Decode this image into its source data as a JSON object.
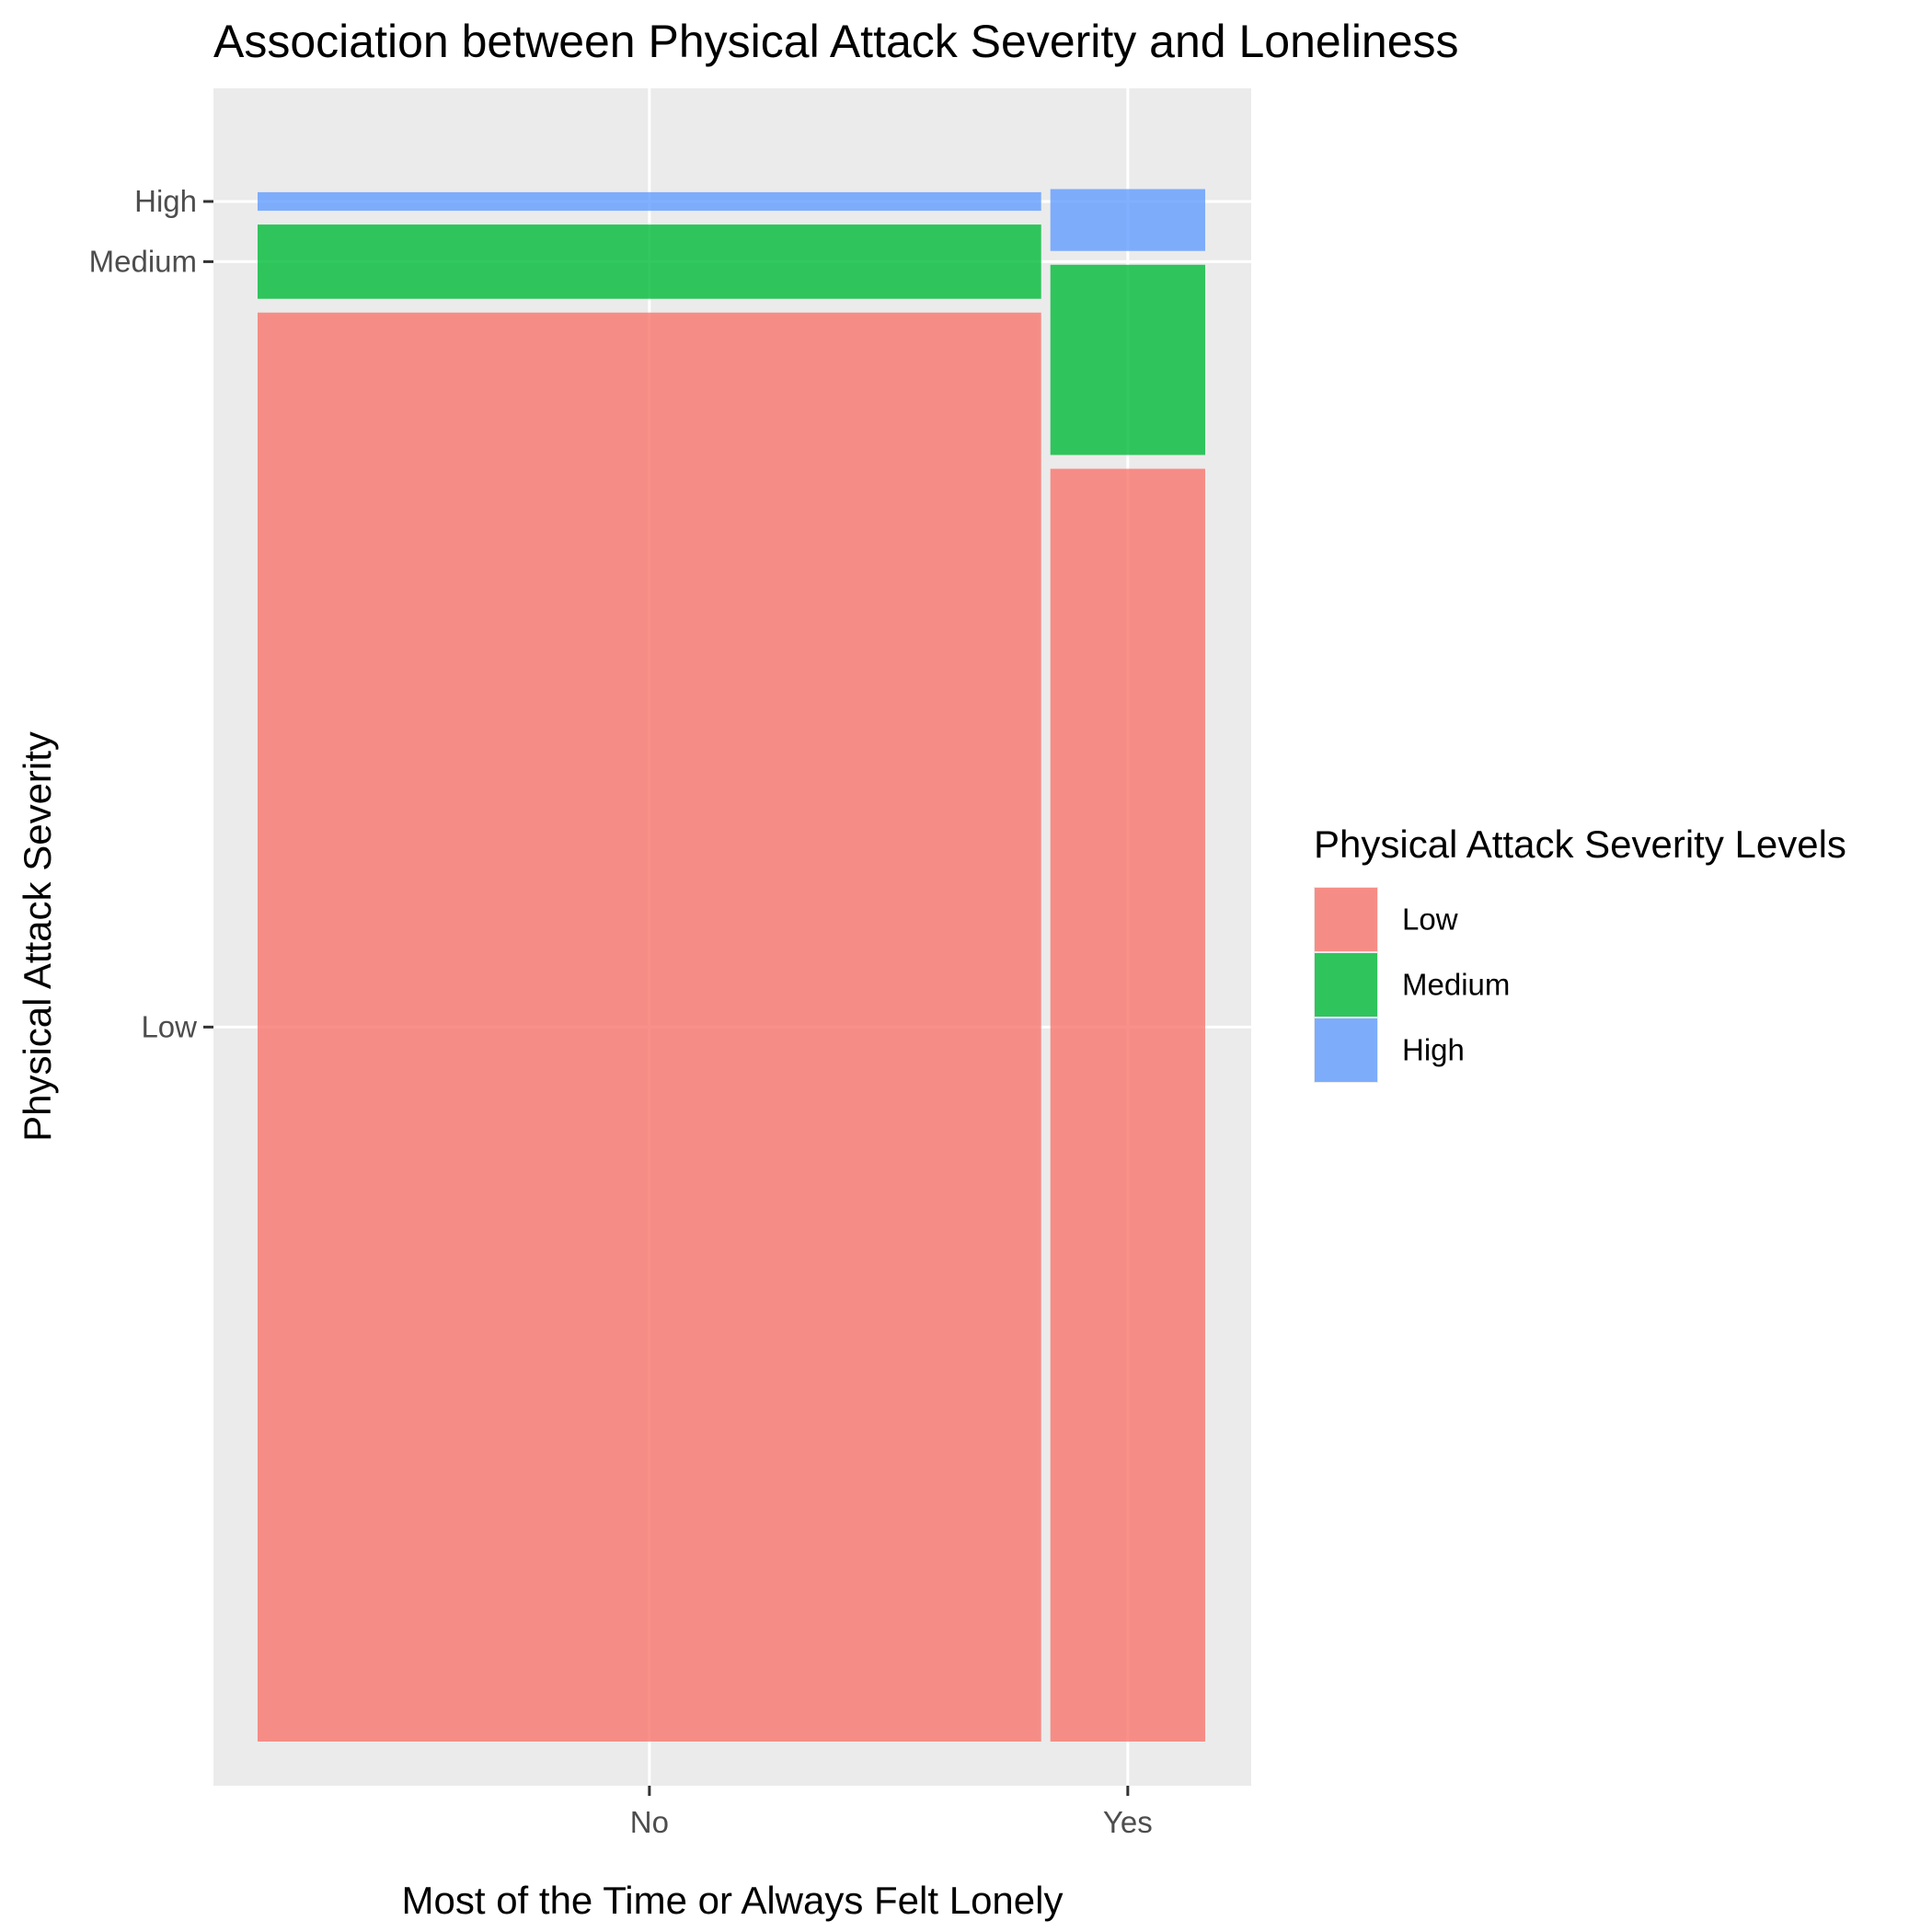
{
  "chart_data": {
    "type": "mosaic",
    "title": "Association between Physical Attack Severity and Loneliness",
    "xlabel": "Most of the Time or Always Felt Lonely",
    "ylabel": "Physical Attack Severity",
    "categories": [
      "No",
      "Yes"
    ],
    "column_share": [
      0.835,
      0.165
    ],
    "series": [
      {
        "name": "Low",
        "values": [
          0.924,
          0.823
        ],
        "color": "#F8766D"
      },
      {
        "name": "Medium",
        "values": [
          0.048,
          0.123
        ],
        "color": "#00BA38"
      },
      {
        "name": "High",
        "values": [
          0.012,
          0.04
        ],
        "color": "#619CFF"
      }
    ],
    "y_ticks": [
      "Low",
      "Medium",
      "High"
    ],
    "ylim": [
      0,
      1
    ],
    "legend": {
      "title": "Physical Attack Severity Levels",
      "placement": "right",
      "items": [
        "Low",
        "Medium",
        "High"
      ]
    },
    "grid": true,
    "panel_background": "#EBEBEB",
    "fill_alpha": 0.8
  }
}
